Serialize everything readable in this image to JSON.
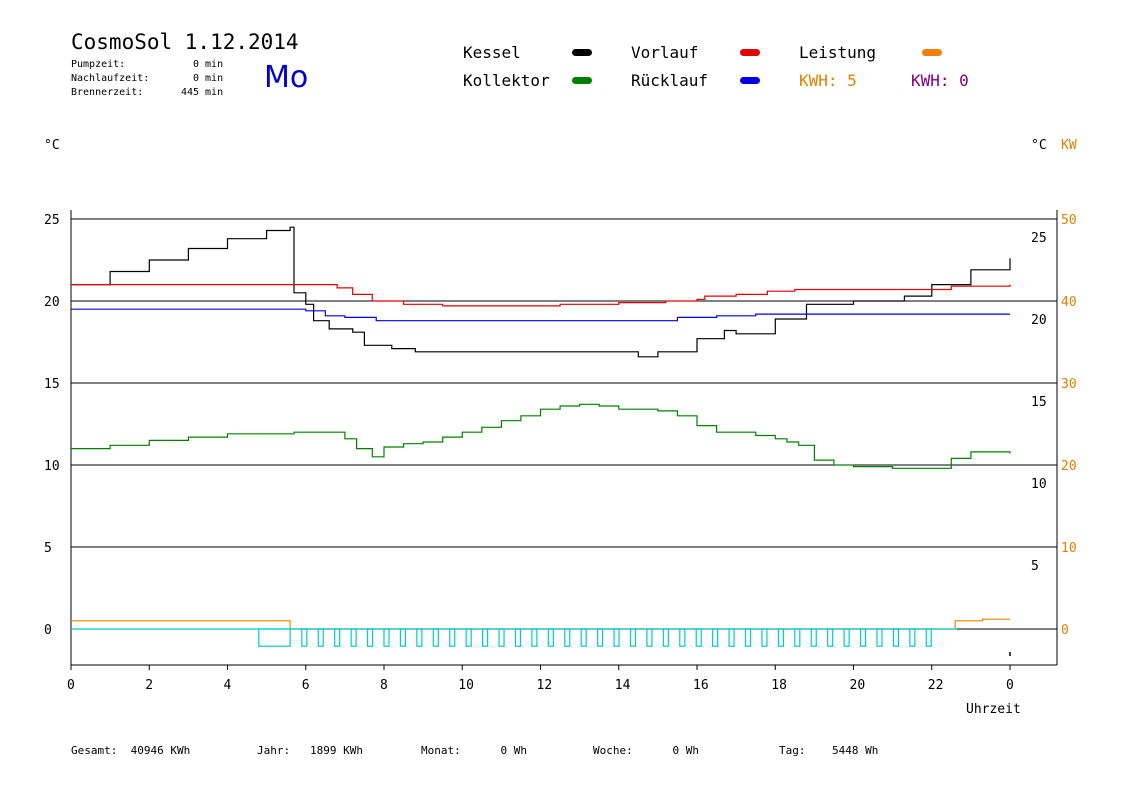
{
  "header": {
    "title": "CosmoSol 1.12.2014",
    "day": "Mo",
    "info": [
      {
        "label": "Pumpzeit:",
        "value": "0",
        "unit": "min"
      },
      {
        "label": "Nachlaufzeit:",
        "value": "0",
        "unit": "min"
      },
      {
        "label": "Brennerzeit:",
        "value": "445",
        "unit": "min"
      }
    ]
  },
  "legend": {
    "kessel": {
      "label": "Kessel",
      "color": "#000000"
    },
    "vorlauf": {
      "label": "Vorlauf",
      "color": "#e00000"
    },
    "leistung": {
      "label": "Leistung",
      "color": "#f08000"
    },
    "kollektor": {
      "label": "Kollektor",
      "color": "#008000"
    },
    "ruecklauf": {
      "label": "Rücklauf",
      "color": "#0000e0"
    },
    "kwh_orange": {
      "label": "KWH:",
      "value": "5",
      "color": "#e08000"
    },
    "kwh_purple": {
      "label": "KWH:",
      "value": "0",
      "color": "#800080"
    }
  },
  "footer": [
    {
      "label": "Gesamt:",
      "value": "40946 KWh"
    },
    {
      "label": "Jahr:",
      "value": "1899 KWh"
    },
    {
      "label": "Monat:",
      "value": "0 Wh"
    },
    {
      "label": "Woche:",
      "value": "0 Wh"
    },
    {
      "label": "Tag:",
      "value": "5448 Wh"
    }
  ],
  "chart_data": {
    "type": "line",
    "xlabel": "Uhrzeit",
    "ylabel": "°C",
    "ylabel_right": "°C",
    "ylabel_right_kw": "KW",
    "xlim": [
      0,
      24
    ],
    "ylim": [
      -2,
      25
    ],
    "x_ticks": [
      "0",
      "2",
      "4",
      "6",
      "8",
      "10",
      "12",
      "14",
      "16",
      "18",
      "20",
      "22",
      "0"
    ],
    "y_ticks_left": [
      "25",
      "20",
      "15",
      "10",
      "5",
      "0"
    ],
    "y_ticks_right_temp": [
      "25",
      "20",
      "15",
      "10",
      "5"
    ],
    "y_ticks_right_kw": [
      "50",
      "40",
      "30",
      "20",
      "10",
      "0"
    ],
    "series": [
      {
        "key": "kessel",
        "color": "#000000",
        "points": [
          [
            0,
            21
          ],
          [
            1,
            21.8
          ],
          [
            2,
            22.5
          ],
          [
            3,
            23.2
          ],
          [
            4,
            23.8
          ],
          [
            5,
            24.3
          ],
          [
            5.6,
            24.5
          ],
          [
            5.7,
            20.5
          ],
          [
            6,
            19.8
          ],
          [
            6.2,
            18.8
          ],
          [
            6.6,
            18.3
          ],
          [
            7.2,
            18.1
          ],
          [
            7.5,
            17.3
          ],
          [
            8.2,
            17.1
          ],
          [
            8.8,
            16.9
          ],
          [
            10,
            16.9
          ],
          [
            11,
            16.9
          ],
          [
            12,
            16.9
          ],
          [
            13,
            16.9
          ],
          [
            14.4,
            16.9
          ],
          [
            14.5,
            16.6
          ],
          [
            15,
            16.9
          ],
          [
            16,
            17.7
          ],
          [
            16.7,
            18.2
          ],
          [
            17,
            18.0
          ],
          [
            18,
            18.9
          ],
          [
            18.8,
            19.8
          ],
          [
            20,
            20.0
          ],
          [
            20.8,
            20.0
          ],
          [
            21.3,
            20.3
          ],
          [
            22,
            21.0
          ],
          [
            23,
            21.9
          ],
          [
            24,
            22.6
          ]
        ]
      },
      {
        "key": "vorlauf",
        "color": "#e00000",
        "points": [
          [
            0,
            21.0
          ],
          [
            5.6,
            21.0
          ],
          [
            6.2,
            21.0
          ],
          [
            6.8,
            20.8
          ],
          [
            7.2,
            20.4
          ],
          [
            7.7,
            20.0
          ],
          [
            8.5,
            19.8
          ],
          [
            9.5,
            19.7
          ],
          [
            11,
            19.7
          ],
          [
            12.5,
            19.8
          ],
          [
            14,
            19.9
          ],
          [
            15.2,
            20.0
          ],
          [
            16,
            20.1
          ],
          [
            16.2,
            20.3
          ],
          [
            17,
            20.4
          ],
          [
            17.8,
            20.6
          ],
          [
            18.5,
            20.7
          ],
          [
            19.2,
            20.7
          ],
          [
            21,
            20.7
          ],
          [
            22,
            20.7
          ],
          [
            22.5,
            20.9
          ],
          [
            24,
            21.0
          ]
        ]
      },
      {
        "key": "ruecklauf",
        "color": "#0000e0",
        "points": [
          [
            0,
            19.5
          ],
          [
            4,
            19.5
          ],
          [
            5,
            19.5
          ],
          [
            6,
            19.4
          ],
          [
            6.5,
            19.1
          ],
          [
            7,
            19.0
          ],
          [
            7.8,
            18.8
          ],
          [
            8.5,
            18.8
          ],
          [
            10,
            18.8
          ],
          [
            12,
            18.8
          ],
          [
            13,
            18.8
          ],
          [
            14,
            18.8
          ],
          [
            15,
            18.8
          ],
          [
            15.5,
            19.0
          ],
          [
            16.5,
            19.1
          ],
          [
            17.5,
            19.2
          ],
          [
            18.5,
            19.2
          ],
          [
            20,
            19.2
          ],
          [
            22,
            19.2
          ],
          [
            24,
            19.2
          ]
        ]
      },
      {
        "key": "kollektor",
        "color": "#008000",
        "points": [
          [
            0,
            11.0
          ],
          [
            1,
            11.2
          ],
          [
            2,
            11.5
          ],
          [
            3,
            11.7
          ],
          [
            4,
            11.9
          ],
          [
            5,
            11.9
          ],
          [
            5.7,
            12.0
          ],
          [
            6.5,
            12.0
          ],
          [
            7,
            11.6
          ],
          [
            7.3,
            11.0
          ],
          [
            7.7,
            10.5
          ],
          [
            8,
            11.1
          ],
          [
            8.5,
            11.3
          ],
          [
            9,
            11.4
          ],
          [
            9.5,
            11.7
          ],
          [
            10,
            12.0
          ],
          [
            10.5,
            12.3
          ],
          [
            11,
            12.7
          ],
          [
            11.5,
            13.0
          ],
          [
            12,
            13.4
          ],
          [
            12.5,
            13.6
          ],
          [
            13,
            13.7
          ],
          [
            13.5,
            13.6
          ],
          [
            14,
            13.4
          ],
          [
            15,
            13.3
          ],
          [
            15.5,
            13.0
          ],
          [
            16,
            12.4
          ],
          [
            16.5,
            12.0
          ],
          [
            17.5,
            11.8
          ],
          [
            18,
            11.6
          ],
          [
            18.3,
            11.4
          ],
          [
            18.6,
            11.2
          ],
          [
            19,
            10.3
          ],
          [
            19.5,
            10.0
          ],
          [
            20,
            9.9
          ],
          [
            21,
            9.8
          ],
          [
            21.8,
            9.8
          ],
          [
            22.5,
            10.4
          ],
          [
            23,
            10.8
          ],
          [
            24,
            10.7
          ]
        ]
      },
      {
        "key": "leistung",
        "color": "#f08000",
        "points": [
          [
            0,
            0.5
          ],
          [
            5.6,
            0.5
          ],
          [
            5.6,
            0
          ],
          [
            22.5,
            0
          ],
          [
            22.6,
            0.5
          ],
          [
            23,
            0.5
          ],
          [
            23.3,
            0.6
          ],
          [
            24,
            0.6
          ]
        ]
      }
    ]
  }
}
